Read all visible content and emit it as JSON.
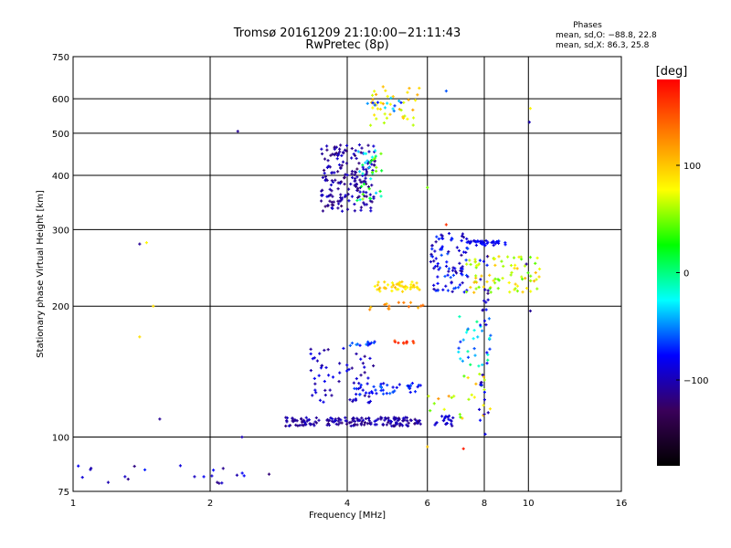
{
  "chart_data": {
    "type": "scatter",
    "title": "Tromsø 20161209 21:10:00−21:11:43",
    "subtitle": "RwPretec (8p)",
    "xlabel": "Frequency [MHz]",
    "ylabel": "Stationary phase Virtual Height [km]",
    "x_scale": "log",
    "y_scale": "log",
    "xlim": [
      1,
      16
    ],
    "ylim": [
      75,
      750
    ],
    "x_ticks": [
      "1",
      "2",
      "4",
      "6",
      "8",
      "10",
      "16"
    ],
    "y_ticks": [
      "75",
      "100",
      "200",
      "300",
      "400",
      "500",
      "600",
      "750"
    ],
    "grid": true,
    "stats": {
      "heading": "Phases",
      "line_o": "mean, sd,O: −88.8, 22.8",
      "line_x": "mean, sd,X:  86.3, 25.8"
    },
    "colorbar": {
      "unit": "[deg]",
      "range": [
        -180,
        180
      ],
      "ticks": [
        "100",
        "0",
        "−100"
      ],
      "tick_values": [
        100,
        0,
        -100
      ],
      "colors": [
        "#000000",
        "#3a005a",
        "#0000ff",
        "#00ffff",
        "#00ff00",
        "#ffff00",
        "#ff8000",
        "#ff0000"
      ]
    },
    "clusters": [
      {
        "x0": 2.9,
        "x1": 5.8,
        "y0": 106,
        "y1": 111,
        "p0": -120,
        "p1": -90,
        "n": 170
      },
      {
        "x0": 3.3,
        "x1": 4.6,
        "y0": 120,
        "y1": 160,
        "p0": -115,
        "p1": -80,
        "n": 60
      },
      {
        "x0": 4.1,
        "x1": 5.8,
        "y0": 125,
        "y1": 133,
        "p0": -90,
        "p1": -55,
        "n": 45
      },
      {
        "x0": 4.0,
        "x1": 4.7,
        "y0": 162,
        "y1": 166,
        "p0": -85,
        "p1": -50,
        "n": 14
      },
      {
        "x0": 5.0,
        "x1": 5.6,
        "y0": 164,
        "y1": 167,
        "p0": 140,
        "p1": 175,
        "n": 10
      },
      {
        "x0": 4.4,
        "x1": 6.0,
        "y0": 195,
        "y1": 205,
        "p0": 100,
        "p1": 140,
        "n": 14
      },
      {
        "x0": 3.5,
        "x1": 4.6,
        "y0": 330,
        "y1": 470,
        "p0": -125,
        "p1": -90,
        "n": 190
      },
      {
        "x0": 4.2,
        "x1": 4.8,
        "y0": 350,
        "y1": 470,
        "p0": -40,
        "p1": 60,
        "n": 35
      },
      {
        "x0": 4.5,
        "x1": 5.8,
        "y0": 520,
        "y1": 640,
        "p0": 60,
        "p1": 115,
        "n": 40
      },
      {
        "x0": 4.3,
        "x1": 5.3,
        "y0": 560,
        "y1": 605,
        "p0": -75,
        "p1": -30,
        "n": 12
      },
      {
        "x0": 4.6,
        "x1": 5.8,
        "y0": 216,
        "y1": 228,
        "p0": 75,
        "p1": 110,
        "n": 45
      },
      {
        "x0": 6.1,
        "x1": 7.4,
        "y0": 215,
        "y1": 295,
        "p0": -110,
        "p1": -60,
        "n": 90
      },
      {
        "x0": 7.3,
        "x1": 8.9,
        "y0": 276,
        "y1": 283,
        "p0": -95,
        "p1": -70,
        "n": 40
      },
      {
        "x0": 7.3,
        "x1": 10.6,
        "y0": 215,
        "y1": 262,
        "p0": 40,
        "p1": 110,
        "n": 80
      },
      {
        "x0": 7.0,
        "x1": 8.3,
        "y0": 145,
        "y1": 190,
        "p0": -70,
        "p1": 10,
        "n": 30
      },
      {
        "x0": 6.2,
        "x1": 6.9,
        "y0": 106,
        "y1": 112,
        "p0": -110,
        "p1": -80,
        "n": 20
      },
      {
        "x0": 6.0,
        "x1": 8.3,
        "y0": 110,
        "y1": 140,
        "p0": 40,
        "p1": 120,
        "n": 25
      },
      {
        "x0": 7.8,
        "x1": 8.2,
        "y0": 100,
        "y1": 300,
        "p0": -110,
        "p1": -70,
        "n": 30
      },
      {
        "x0": 1.0,
        "x1": 2.7,
        "y0": 78,
        "y1": 86,
        "p0": -120,
        "p1": -70,
        "n": 22
      }
    ],
    "points": [
      {
        "x": 2.3,
        "y": 505,
        "phase": -110
      },
      {
        "x": 1.4,
        "y": 278,
        "phase": -110
      },
      {
        "x": 1.45,
        "y": 280,
        "phase": 80
      },
      {
        "x": 1.5,
        "y": 200,
        "phase": 90
      },
      {
        "x": 1.4,
        "y": 170,
        "phase": 90
      },
      {
        "x": 1.55,
        "y": 110,
        "phase": -110
      },
      {
        "x": 2.35,
        "y": 100,
        "phase": -100
      },
      {
        "x": 6.0,
        "y": 375,
        "phase": 50
      },
      {
        "x": 6.6,
        "y": 625,
        "phase": -60
      },
      {
        "x": 10.05,
        "y": 530,
        "phase": -100
      },
      {
        "x": 10.1,
        "y": 570,
        "phase": 80
      },
      {
        "x": 10.1,
        "y": 195,
        "phase": -110
      },
      {
        "x": 9.9,
        "y": 250,
        "phase": -110
      },
      {
        "x": 7.2,
        "y": 94,
        "phase": 170
      },
      {
        "x": 6.0,
        "y": 95,
        "phase": 100
      },
      {
        "x": 8.15,
        "y": 214,
        "phase": -120
      },
      {
        "x": 6.6,
        "y": 308,
        "phase": 160
      }
    ]
  }
}
